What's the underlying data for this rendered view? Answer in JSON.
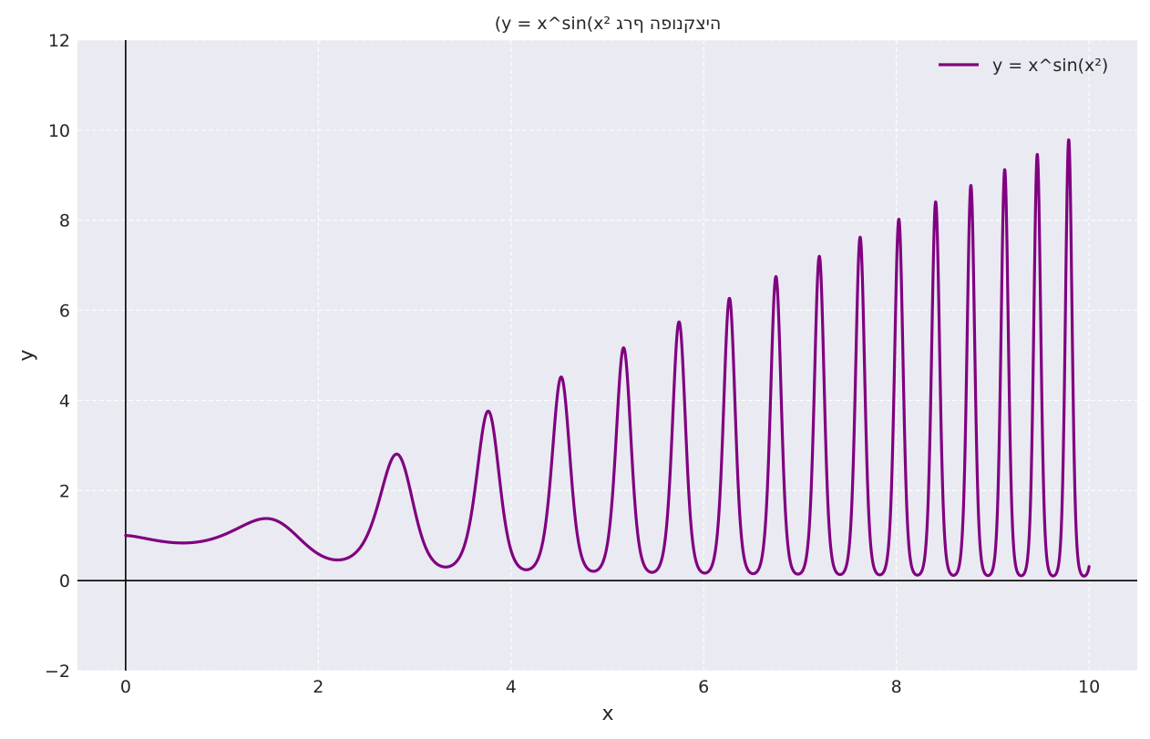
{
  "chart_data": {
    "type": "line",
    "title": "(y = x^sin(x² היצקנופה ףרג",
    "xlabel": "x",
    "ylabel": "y",
    "xlim": [
      -0.5,
      10.5
    ],
    "ylim": [
      -2,
      12
    ],
    "x_ticks": [
      "0",
      "2",
      "4",
      "6",
      "8",
      "10"
    ],
    "y_ticks": [
      "−2",
      "0",
      "2",
      "4",
      "6",
      "8",
      "10",
      "12"
    ],
    "x_tick_values": [
      0,
      2,
      4,
      6,
      8,
      10
    ],
    "y_tick_values": [
      -2,
      0,
      2,
      4,
      6,
      8,
      10,
      12
    ],
    "grid": true,
    "grid_style": "dashed",
    "legend_position": "top-right",
    "plot_background": "#eaeaf2",
    "reference_lines": [
      "x = 0",
      "y = 0"
    ],
    "series": [
      {
        "name": "y = x^sin(x²)",
        "color": "#800080",
        "function": "x^sin(x^2)",
        "x_range": [
          0,
          10
        ],
        "sample_points": [
          {
            "x": 0,
            "y": 1.0
          },
          {
            "x": 0.6,
            "y": 0.84
          },
          {
            "x": 1.45,
            "y": 1.38
          },
          {
            "x": 2.2,
            "y": 0.45
          },
          {
            "x": 2.8,
            "y": 2.8
          },
          {
            "x": 3.3,
            "y": 0.3
          },
          {
            "x": 3.75,
            "y": 3.75
          },
          {
            "x": 4.15,
            "y": 0.25
          },
          {
            "x": 4.52,
            "y": 4.5
          },
          {
            "x": 5.17,
            "y": 5.15
          },
          {
            "x": 5.73,
            "y": 5.7
          },
          {
            "x": 6.27,
            "y": 6.2
          },
          {
            "x": 6.75,
            "y": 6.7
          },
          {
            "x": 7.19,
            "y": 7.2
          },
          {
            "x": 7.61,
            "y": 7.55
          },
          {
            "x": 8.02,
            "y": 7.9
          },
          {
            "x": 8.4,
            "y": 8.2
          },
          {
            "x": 8.78,
            "y": 8.7
          },
          {
            "x": 9.13,
            "y": 9.05
          },
          {
            "x": 9.47,
            "y": 9.45
          },
          {
            "x": 9.8,
            "y": 9.45
          },
          {
            "x": 10,
            "y": 0.3
          }
        ]
      }
    ]
  }
}
